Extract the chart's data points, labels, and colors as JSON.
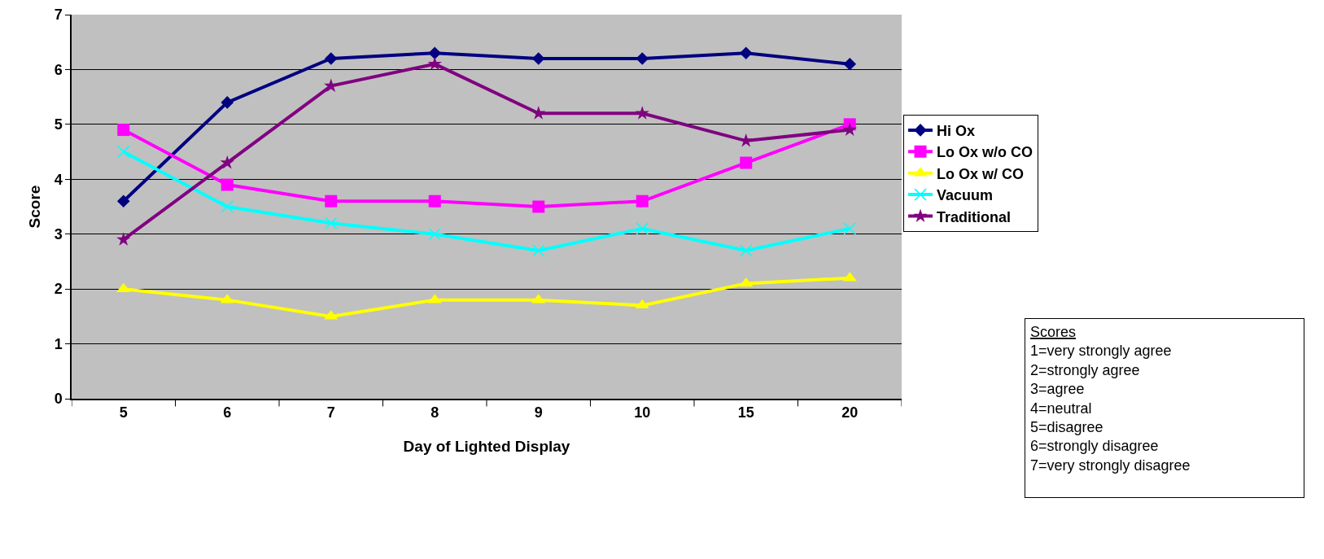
{
  "chart_data": {
    "type": "line",
    "xlabel": "Day of Lighted Display",
    "ylabel": "Score",
    "categories": [
      "5",
      "6",
      "7",
      "8",
      "9",
      "10",
      "15",
      "20"
    ],
    "ylim": [
      0,
      7
    ],
    "yticks": [
      0,
      1,
      2,
      3,
      4,
      5,
      6,
      7
    ],
    "grid": "y",
    "legend": "right",
    "series": [
      {
        "name": "Hi Ox",
        "color": "#000080",
        "marker": "diamond",
        "values": [
          3.6,
          5.4,
          6.2,
          6.3,
          6.2,
          6.2,
          6.3,
          6.1
        ]
      },
      {
        "name": "Lo Ox w/o CO",
        "color": "#ff00ff",
        "marker": "square",
        "values": [
          4.9,
          3.9,
          3.6,
          3.6,
          3.5,
          3.6,
          4.3,
          5.0
        ]
      },
      {
        "name": "Lo Ox w/ CO",
        "color": "#ffff00",
        "marker": "triangle",
        "values": [
          2.0,
          1.8,
          1.5,
          1.8,
          1.8,
          1.7,
          2.1,
          2.2
        ]
      },
      {
        "name": "Vacuum",
        "color": "#00ffff",
        "marker": "cross",
        "values": [
          4.5,
          3.5,
          3.2,
          3.0,
          2.7,
          3.1,
          2.7,
          3.1
        ]
      },
      {
        "name": "Traditional",
        "color": "#800080",
        "marker": "star",
        "values": [
          2.9,
          4.3,
          5.7,
          6.1,
          5.2,
          5.2,
          4.7,
          4.9
        ]
      }
    ],
    "annotations": [
      "Scores\n1=very strongly agree\n2=strongly agree\n3=agree\n4=neutral\n5=disagree\n6=strongly disagree\n7=very strongly disagree\n"
    ]
  }
}
